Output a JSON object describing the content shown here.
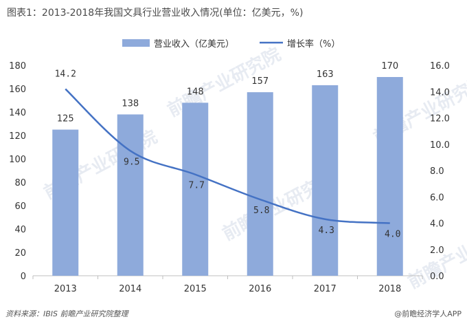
{
  "title": "图表1：2013-2018年我国文具行业营业收入情况(单位：亿美元，%)",
  "source": "资料来源：IBIS 前瞻产业研究院整理",
  "brand": "@前瞻经济学人APP",
  "watermark": "前瞻产业研究院",
  "colors": {
    "bar": "#8eaadb",
    "line": "#4472c4",
    "axis": "#bfbfbf"
  },
  "chart_data": {
    "type": "bar+line",
    "categories": [
      "2013",
      "2014",
      "2015",
      "2016",
      "2017",
      "2018"
    ],
    "series": [
      {
        "name": "营业收入（亿美元）",
        "type": "bar",
        "axis": "left",
        "values": [
          125,
          138,
          148,
          157,
          163,
          170
        ],
        "labels": [
          "125",
          "138",
          "148",
          "157",
          "163",
          "170"
        ]
      },
      {
        "name": "增长率（%）",
        "type": "line",
        "axis": "right",
        "values": [
          14.2,
          9.5,
          7.7,
          5.8,
          4.3,
          4.0
        ],
        "labels": [
          "14.2",
          "9.5",
          "7.7",
          "5.8",
          "4.3",
          "4.0"
        ]
      }
    ],
    "y_left": {
      "ylim": [
        0,
        180
      ],
      "ticks": [
        "0",
        "20",
        "40",
        "60",
        "80",
        "100",
        "120",
        "140",
        "160",
        "180"
      ]
    },
    "y_right": {
      "ylim": [
        0,
        16
      ],
      "ticks": [
        "0.0",
        "2.0",
        "4.0",
        "6.0",
        "8.0",
        "10.0",
        "12.0",
        "14.0",
        "16.0"
      ]
    },
    "legend": "top-center",
    "grid": false
  }
}
